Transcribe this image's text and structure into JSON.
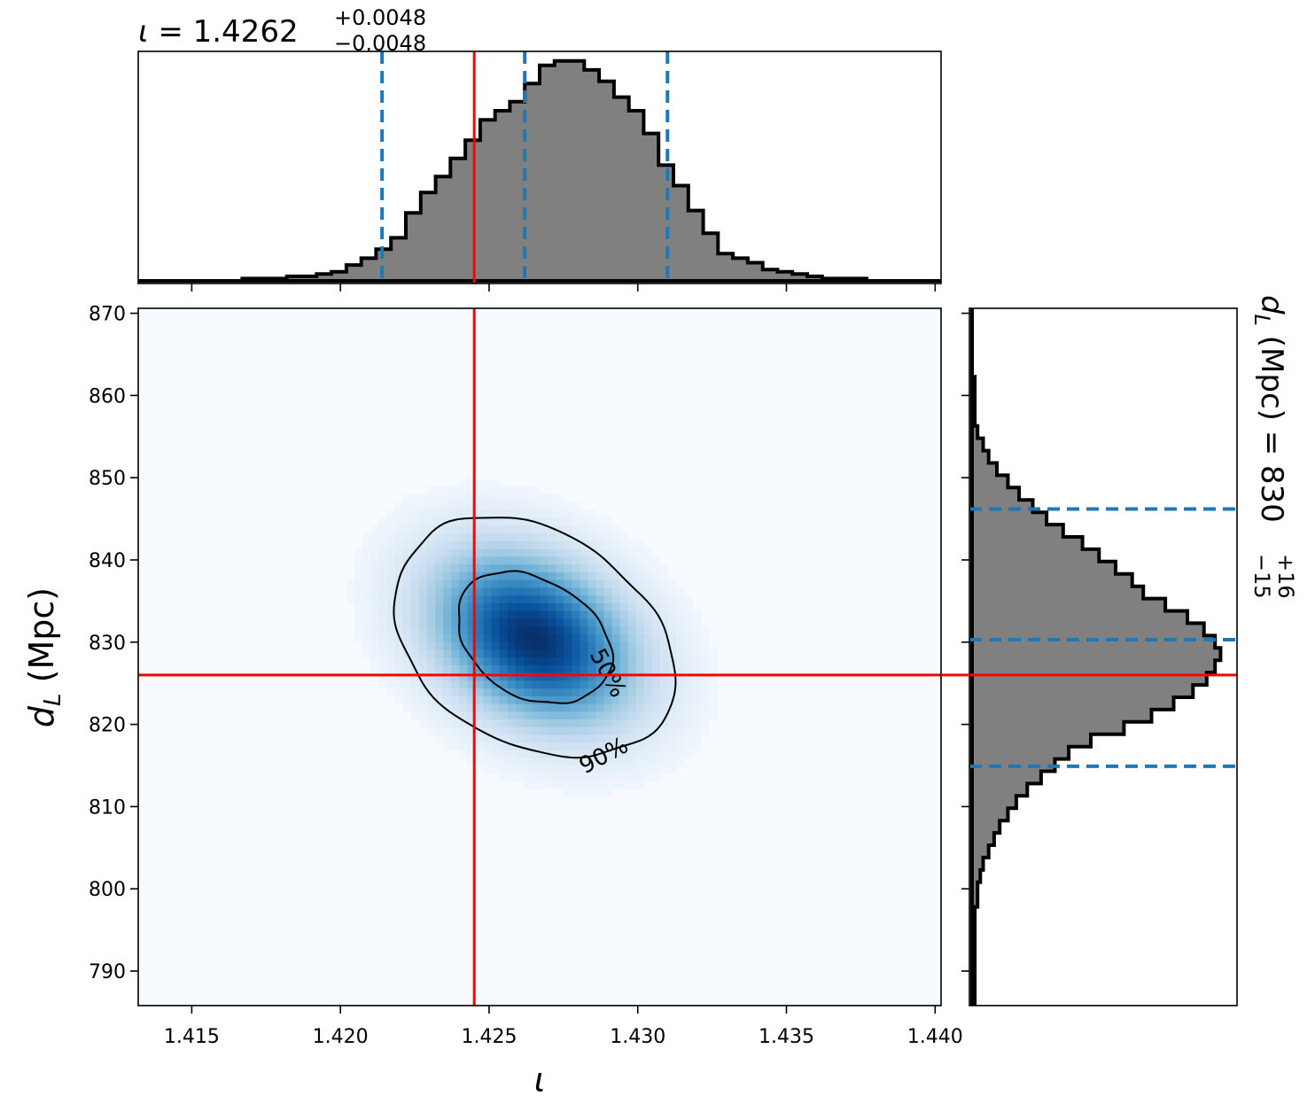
{
  "chart_data": {
    "type": "heatmap",
    "subtype": "corner-plot",
    "x_param": {
      "label": "ι",
      "lim": [
        1.4132,
        1.4402
      ],
      "ticks": [
        1.415,
        1.42,
        1.425,
        1.43,
        1.435,
        1.44
      ],
      "tick_labels": [
        "1.415",
        "1.420",
        "1.425",
        "1.430",
        "1.435",
        "1.440"
      ],
      "true_value": 1.4245,
      "summary": {
        "prefix": "ι = ",
        "median": "1.4262",
        "plus": "+0.0048",
        "minus": "−0.0048"
      },
      "quantiles": [
        1.4214,
        1.4262,
        1.431
      ]
    },
    "y_param": {
      "label_main": "d",
      "label_sub": "L",
      "label_unit": " (Mpc)",
      "lim": [
        785.8,
        870.6
      ],
      "ticks": [
        790,
        800,
        810,
        820,
        830,
        840,
        850,
        860,
        870
      ],
      "tick_labels": [
        "790",
        "800",
        "810",
        "820",
        "830",
        "840",
        "850",
        "860",
        "870"
      ],
      "true_value": 826,
      "summary": {
        "prefix_main": "d",
        "prefix_sub": "L",
        "prefix_rest": " (Mpc) = ",
        "median": "830",
        "plus": "+16",
        "minus": "−15"
      },
      "quantiles": [
        814.9,
        830.3,
        846.2
      ]
    },
    "x_histogram": {
      "bin_width": 0.0005,
      "range": [
        1.4132,
        1.4402
      ],
      "counts": [
        0,
        0,
        0,
        0,
        0,
        0,
        0,
        1,
        1,
        1,
        2,
        2,
        3,
        4,
        7,
        10,
        14,
        19,
        30,
        39,
        46,
        54,
        62,
        71,
        75,
        79,
        87,
        95,
        97,
        97,
        93,
        88,
        81,
        75,
        65,
        51,
        42,
        31,
        21,
        12,
        10,
        8,
        5,
        4,
        3,
        2,
        1,
        1,
        1,
        0,
        0,
        0,
        0,
        0
      ],
      "max_count": 100
    },
    "y_histogram": {
      "bin_width": 1.5,
      "range": [
        785.8,
        870.6
      ],
      "counts": [
        1,
        1,
        1,
        1,
        1,
        1,
        1,
        1,
        2,
        2,
        3,
        4,
        6,
        8,
        10,
        13,
        16,
        20,
        25,
        30,
        35,
        43,
        55,
        65,
        73,
        80,
        85,
        88,
        90,
        88,
        84,
        78,
        70,
        62,
        58,
        52,
        46,
        40,
        33,
        27,
        22,
        17,
        13,
        9,
        6,
        4,
        2,
        1,
        1,
        1,
        1,
        0,
        0,
        0,
        0,
        0,
        0
      ],
      "max_count": 95
    },
    "density": {
      "center": [
        1.4265,
        830.5
      ],
      "sigma": [
        0.0022,
        6.8
      ],
      "rho": -0.3
    },
    "contours": [
      {
        "level": "50%",
        "label": "50%"
      },
      {
        "level": "90%",
        "label": "90%"
      }
    ],
    "colors": {
      "true_line": "#ff0000",
      "quantile_line": "#1f77b4",
      "hist_fill": "#808080",
      "hist_edge": "#000000",
      "cmap": "Blues"
    }
  }
}
